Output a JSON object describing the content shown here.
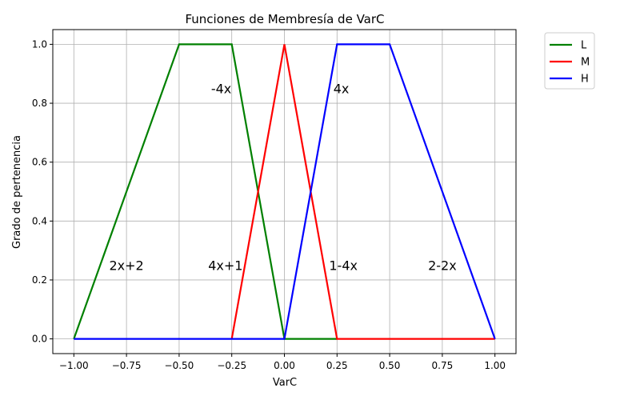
{
  "chart_data": {
    "type": "line",
    "title": "Funciones de Membresía de VarC",
    "xlabel": "VarC",
    "ylabel": "Grado de pertenencia",
    "xlim": [
      -1.1,
      1.1
    ],
    "ylim": [
      -0.05,
      1.05
    ],
    "xticks": [
      -1.0,
      -0.75,
      -0.5,
      -0.25,
      0.0,
      0.25,
      0.5,
      0.75,
      1.0
    ],
    "xtick_labels": [
      "−1.00",
      "−0.75",
      "−0.50",
      "−0.25",
      "0.00",
      "0.25",
      "0.50",
      "0.75",
      "1.00"
    ],
    "yticks": [
      0.0,
      0.2,
      0.4,
      0.6,
      0.8,
      1.0
    ],
    "ytick_labels": [
      "0.0",
      "0.2",
      "0.4",
      "0.6",
      "0.8",
      "1.0"
    ],
    "grid": true,
    "legend_position": "outside-top-right",
    "series": [
      {
        "name": "L",
        "color": "#008000",
        "x": [
          -1.0,
          -0.5,
          -0.25,
          0.0,
          0.25
        ],
        "y": [
          0.0,
          1.0,
          1.0,
          0.0,
          0.0
        ]
      },
      {
        "name": "M",
        "color": "#ff0000",
        "x": [
          -0.25,
          0.0,
          0.25,
          1.0
        ],
        "y": [
          0.0,
          1.0,
          0.0,
          0.0
        ]
      },
      {
        "name": "H",
        "color": "#0000ff",
        "x": [
          -1.0,
          0.0,
          0.25,
          0.5,
          1.0
        ],
        "y": [
          0.0,
          0.0,
          1.0,
          1.0,
          0.0
        ]
      }
    ],
    "annotations": [
      {
        "text": "2x+2",
        "x": -0.75,
        "y": 0.25
      },
      {
        "text": "4x+1",
        "x": -0.28,
        "y": 0.25
      },
      {
        "text": "-4x",
        "x": -0.3,
        "y": 0.85
      },
      {
        "text": "4x",
        "x": 0.27,
        "y": 0.85
      },
      {
        "text": "1-4x",
        "x": 0.28,
        "y": 0.25
      },
      {
        "text": "2-2x",
        "x": 0.75,
        "y": 0.25
      }
    ]
  }
}
